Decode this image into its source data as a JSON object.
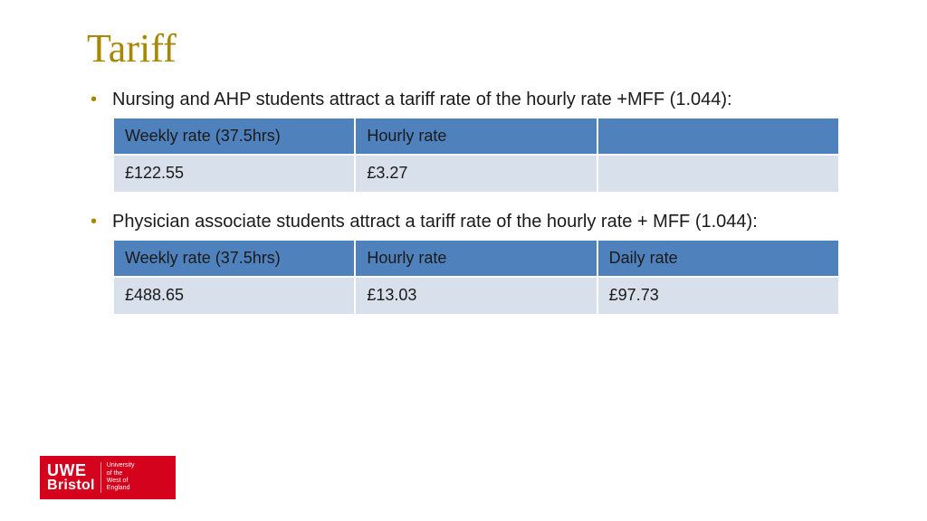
{
  "title": {
    "text": "Tariff",
    "color": "#a88700",
    "fontsize": 44
  },
  "bullet_color": "#a88700",
  "body_color": "#1a1a1a",
  "body_fontsize": 20,
  "bullets": [
    {
      "text": "Nursing and AHP students attract a tariff rate of the hourly rate +MFF (1.044):"
    },
    {
      "text": "Physician associate students attract a tariff rate of the hourly rate + MFF (1.044):"
    }
  ],
  "tables": [
    {
      "header_bg": "#4f81bd",
      "header_color": "#1a1a1a",
      "row_bg": "#d8e0ec",
      "row_color": "#1a1a1a",
      "fontsize": 18,
      "columns": [
        "Weekly rate (37.5hrs)",
        "Hourly rate",
        ""
      ],
      "rows": [
        [
          "£122.55",
          "£3.27",
          ""
        ]
      ]
    },
    {
      "header_bg": "#4f81bd",
      "header_color": "#1a1a1a",
      "row_bg": "#d8e0ec",
      "row_color": "#1a1a1a",
      "fontsize": 18,
      "columns": [
        "Weekly rate (37.5hrs)",
        "Hourly rate",
        "Daily rate"
      ],
      "rows": [
        [
          "£488.65",
          "£13.03",
          "£97.73"
        ]
      ]
    }
  ],
  "logo": {
    "line1": "UWE",
    "line2": "Bristol",
    "sub": "University\nof the\nWest of\nEngland",
    "bg": "#d4021d"
  }
}
